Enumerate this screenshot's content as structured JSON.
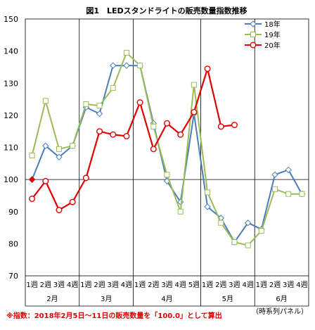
{
  "chart_data": {
    "type": "line",
    "title": "図1　LEDスタンドライトの販売数量指数推移",
    "ylim": [
      70,
      150
    ],
    "yticks": [
      70,
      80,
      90,
      100,
      110,
      120,
      130,
      140,
      150
    ],
    "reference_line": 100,
    "grid": false,
    "legend_position": "top-right",
    "x": [
      "1週",
      "2週",
      "3週",
      "4週",
      "1週",
      "2週",
      "3週",
      "4週",
      "1週",
      "2週",
      "3週",
      "4週",
      "5週",
      "1週",
      "2週",
      "3週",
      "4週",
      "1週",
      "2週",
      "3週",
      "4週"
    ],
    "months": [
      {
        "label": "2月",
        "start": 0,
        "end": 3
      },
      {
        "label": "3月",
        "start": 4,
        "end": 7
      },
      {
        "label": "4月",
        "start": 8,
        "end": 12
      },
      {
        "label": "5月",
        "start": 13,
        "end": 16
      },
      {
        "label": "6月",
        "start": 17,
        "end": 20
      }
    ],
    "series": [
      {
        "name": "18年",
        "color": "#4a7ebb",
        "marker": "diamond",
        "values": [
          100,
          110.5,
          107,
          110.5,
          122.5,
          120.5,
          135.5,
          135.5,
          135.5,
          117.5,
          99.5,
          93,
          120.5,
          91.5,
          88,
          80.5,
          86.5,
          84.5,
          101.5,
          103,
          95.5
        ]
      },
      {
        "name": "19年",
        "color": "#9bbb59",
        "marker": "square",
        "values": [
          107.5,
          124.5,
          109.5,
          110.5,
          123.5,
          123,
          128.5,
          139.5,
          135.5,
          116.5,
          101.5,
          90,
          129.5,
          96,
          86.5,
          80.5,
          79.5,
          84,
          97,
          95.5,
          95.5
        ]
      },
      {
        "name": "20年",
        "color": "#e00000",
        "marker": "circle",
        "values": [
          94,
          99.5,
          90.5,
          93,
          100.5,
          115,
          114,
          113.5,
          124,
          109.5,
          117.5,
          114,
          121,
          134.5,
          116.5,
          117,
          null,
          null,
          null,
          null,
          null
        ]
      }
    ],
    "base_marker": {
      "index": 0,
      "value": 100,
      "color": "#e00000"
    }
  },
  "footnote": {
    "left": "※指数：2018年2月5日～11日の販売数量を「100.0」として算出",
    "right": "（時系列パネル）"
  }
}
